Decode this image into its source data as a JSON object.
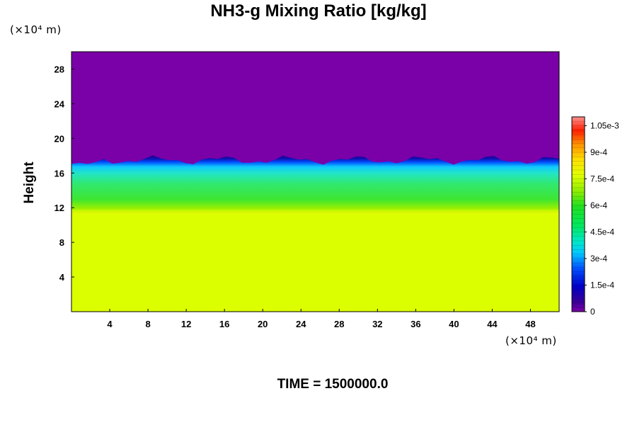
{
  "chart_data": {
    "type": "heatmap",
    "title": "NH3-g Mixing Ratio [kg/kg]",
    "ylabel": "Height",
    "x_unit": "(×10⁴ m)",
    "y_unit": "(×10⁴ m)",
    "footer": "TIME = 1500000.0",
    "xlim": [
      0,
      51
    ],
    "ylim": [
      0,
      30
    ],
    "x_ticks": [
      4,
      8,
      12,
      16,
      20,
      24,
      28,
      32,
      36,
      40,
      44,
      48
    ],
    "y_ticks": [
      4,
      8,
      12,
      16,
      20,
      24,
      28
    ],
    "colorbar": {
      "min": 0,
      "max": 0.0011,
      "tick_values": [
        0,
        0.00015,
        0.0003,
        0.00045,
        0.0006,
        0.00075,
        0.0009,
        0.00105
      ],
      "tick_labels": [
        "0",
        "1.5e-4",
        "3e-4",
        "4.5e-4",
        "6e-4",
        "7.5e-4",
        "9e-4",
        "1.05e-3"
      ]
    },
    "field_description": {
      "lower_layer": {
        "height_range": [
          0,
          11.5
        ],
        "value": 0.00077
      },
      "transition_layer": {
        "height_range": [
          11.5,
          17.5
        ],
        "value_range": [
          0.00025,
          0.00065
        ]
      },
      "upper_layer": {
        "height_range": [
          17.5,
          30
        ],
        "value": 0
      }
    }
  }
}
